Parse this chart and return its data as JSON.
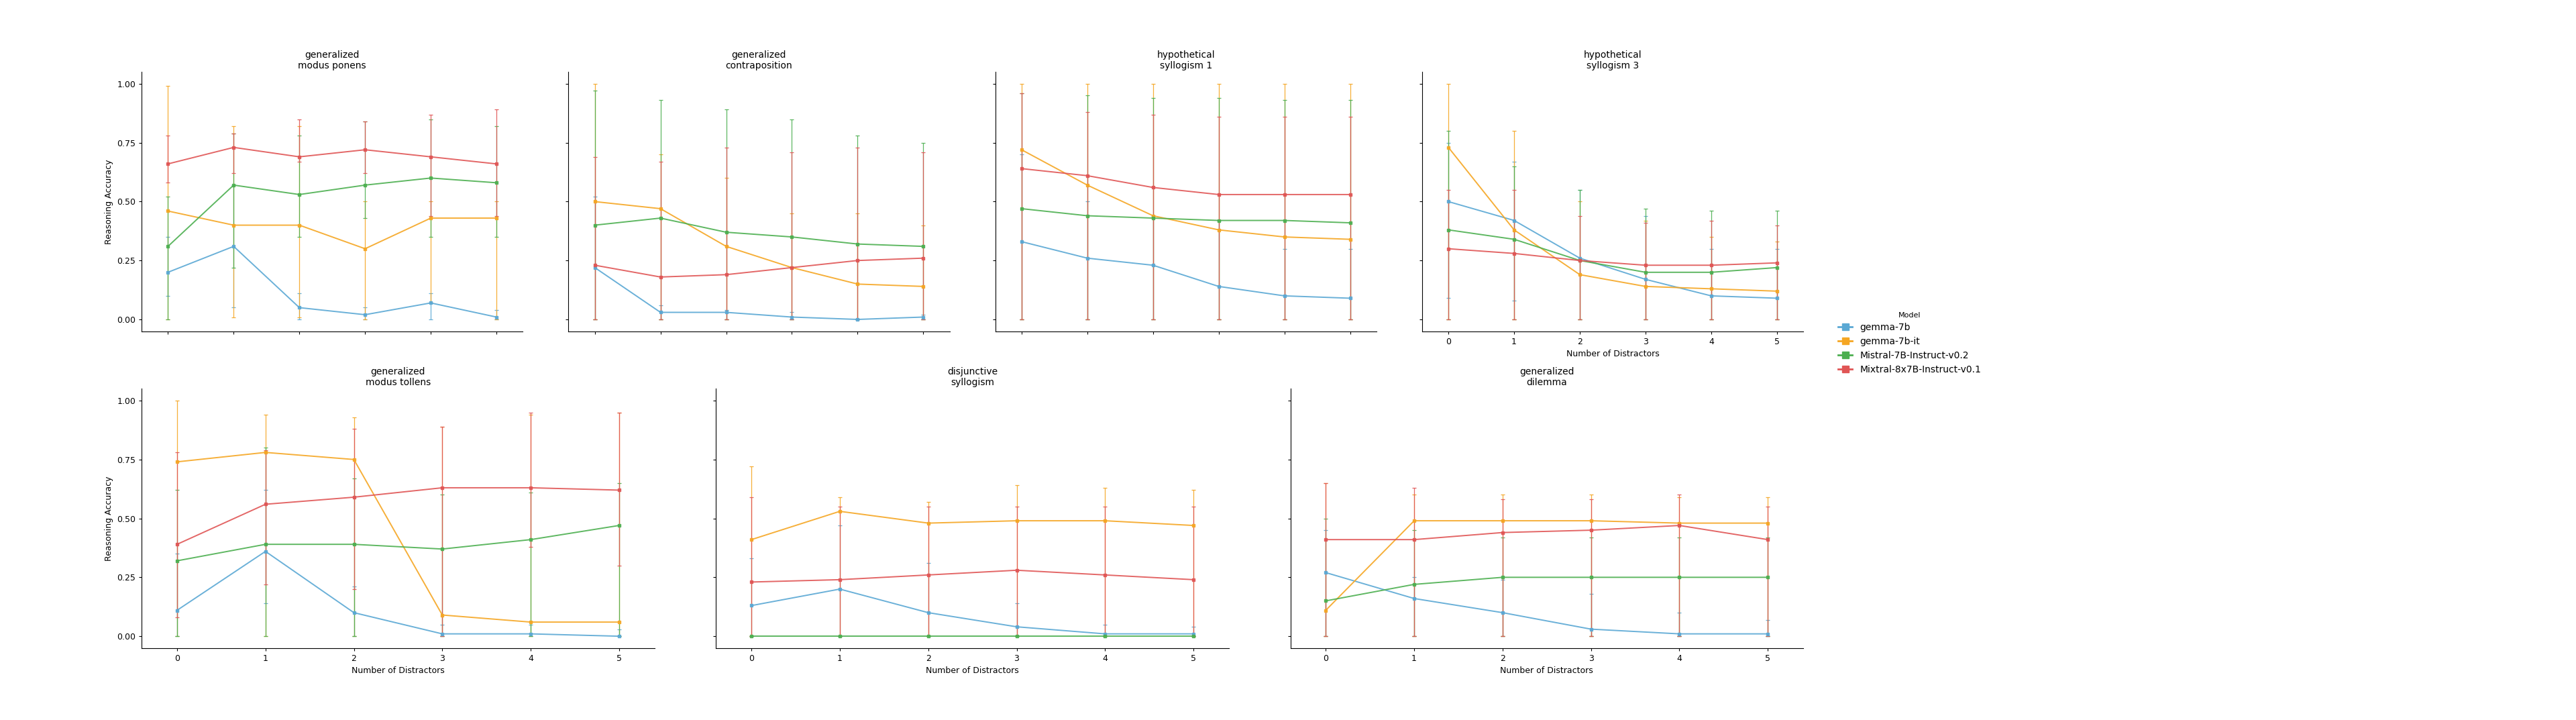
{
  "models": [
    "gemma-7b",
    "gemma-7b-it",
    "Mistral-7B-Instruct-v0.2",
    "Mixtral-8x7B-Instruct-v0.1"
  ],
  "model_colors": [
    "#5aa8d4",
    "#f5a623",
    "#4caf50",
    "#e05555"
  ],
  "x": [
    0,
    1,
    2,
    3,
    4,
    5
  ],
  "subplots": [
    {
      "title": "generalized\nmodus ponens",
      "row": 0,
      "col": 0,
      "data": {
        "gemma-7b": {
          "mean": [
            0.2,
            0.31,
            0.05,
            0.02,
            0.07,
            0.01
          ],
          "lo": [
            0.1,
            0.05,
            0.0,
            0.0,
            0.0,
            0.0
          ],
          "hi": [
            0.35,
            0.57,
            0.11,
            0.05,
            0.11,
            0.04
          ]
        },
        "gemma-7b-it": {
          "mean": [
            0.46,
            0.4,
            0.4,
            0.3,
            0.43,
            0.43
          ],
          "lo": [
            0.0,
            0.01,
            0.01,
            0.0,
            0.07,
            0.0
          ],
          "hi": [
            0.99,
            0.82,
            0.82,
            0.5,
            0.5,
            0.5
          ]
        },
        "Mistral-7B-Instruct-v0.2": {
          "mean": [
            0.31,
            0.57,
            0.53,
            0.57,
            0.6,
            0.58
          ],
          "lo": [
            0.0,
            0.22,
            0.35,
            0.43,
            0.35,
            0.35
          ],
          "hi": [
            0.52,
            0.79,
            0.78,
            0.84,
            0.85,
            0.82
          ]
        },
        "Mixtral-8x7B-Instruct-v0.1": {
          "mean": [
            0.66,
            0.73,
            0.69,
            0.72,
            0.69,
            0.66
          ],
          "lo": [
            0.58,
            0.62,
            0.67,
            0.62,
            0.44,
            0.44
          ],
          "hi": [
            0.78,
            0.79,
            0.85,
            0.84,
            0.87,
            0.89
          ]
        }
      }
    },
    {
      "title": "generalized\ncontraposition",
      "row": 0,
      "col": 1,
      "data": {
        "gemma-7b": {
          "mean": [
            0.22,
            0.03,
            0.03,
            0.01,
            0.0,
            0.01
          ],
          "lo": [
            0.0,
            0.0,
            0.0,
            0.0,
            0.0,
            0.0
          ],
          "hi": [
            0.52,
            0.06,
            0.04,
            0.03,
            0.0,
            0.02
          ]
        },
        "gemma-7b-it": {
          "mean": [
            0.5,
            0.47,
            0.31,
            0.22,
            0.15,
            0.14
          ],
          "lo": [
            0.0,
            0.0,
            0.0,
            0.0,
            0.0,
            0.0
          ],
          "hi": [
            1.0,
            0.7,
            0.6,
            0.45,
            0.45,
            0.4
          ]
        },
        "Mistral-7B-Instruct-v0.2": {
          "mean": [
            0.4,
            0.43,
            0.37,
            0.35,
            0.32,
            0.31
          ],
          "lo": [
            0.0,
            0.0,
            0.0,
            0.0,
            0.0,
            0.0
          ],
          "hi": [
            0.97,
            0.93,
            0.89,
            0.85,
            0.78,
            0.75
          ]
        },
        "Mixtral-8x7B-Instruct-v0.1": {
          "mean": [
            0.23,
            0.18,
            0.19,
            0.22,
            0.25,
            0.26
          ],
          "lo": [
            0.0,
            0.0,
            0.0,
            0.0,
            0.0,
            0.0
          ],
          "hi": [
            0.69,
            0.67,
            0.73,
            0.71,
            0.73,
            0.71
          ]
        }
      }
    },
    {
      "title": "hypothetical\nsyllogism 1",
      "row": 0,
      "col": 2,
      "data": {
        "gemma-7b": {
          "mean": [
            0.33,
            0.26,
            0.23,
            0.14,
            0.1,
            0.09
          ],
          "lo": [
            0.0,
            0.0,
            0.0,
            0.0,
            0.0,
            0.0
          ],
          "hi": [
            0.7,
            0.5,
            0.44,
            0.42,
            0.3,
            0.3
          ]
        },
        "gemma-7b-it": {
          "mean": [
            0.72,
            0.57,
            0.44,
            0.38,
            0.35,
            0.34
          ],
          "lo": [
            0.0,
            0.0,
            0.0,
            0.0,
            0.0,
            0.0
          ],
          "hi": [
            1.0,
            1.0,
            1.0,
            1.0,
            1.0,
            1.0
          ]
        },
        "Mistral-7B-Instruct-v0.2": {
          "mean": [
            0.47,
            0.44,
            0.43,
            0.42,
            0.42,
            0.41
          ],
          "lo": [
            0.0,
            0.0,
            0.0,
            0.0,
            0.0,
            0.0
          ],
          "hi": [
            0.96,
            0.95,
            0.94,
            0.94,
            0.93,
            0.93
          ]
        },
        "Mixtral-8x7B-Instruct-v0.1": {
          "mean": [
            0.64,
            0.61,
            0.56,
            0.53,
            0.53,
            0.53
          ],
          "lo": [
            0.0,
            0.0,
            0.0,
            0.0,
            0.0,
            0.0
          ],
          "hi": [
            0.96,
            0.88,
            0.87,
            0.86,
            0.86,
            0.86
          ]
        }
      }
    },
    {
      "title": "hypothetical\nsyllogism 3",
      "row": 0,
      "col": 3,
      "data": {
        "gemma-7b": {
          "mean": [
            0.5,
            0.42,
            0.26,
            0.17,
            0.1,
            0.09
          ],
          "lo": [
            0.09,
            0.08,
            0.0,
            0.0,
            0.0,
            0.0
          ],
          "hi": [
            0.75,
            0.67,
            0.55,
            0.44,
            0.3,
            0.3
          ]
        },
        "gemma-7b-it": {
          "mean": [
            0.73,
            0.38,
            0.19,
            0.14,
            0.13,
            0.12
          ],
          "lo": [
            0.0,
            0.0,
            0.0,
            0.0,
            0.0,
            0.0
          ],
          "hi": [
            1.0,
            0.8,
            0.5,
            0.42,
            0.35,
            0.33
          ]
        },
        "Mistral-7B-Instruct-v0.2": {
          "mean": [
            0.38,
            0.34,
            0.25,
            0.2,
            0.2,
            0.22
          ],
          "lo": [
            0.0,
            0.0,
            0.0,
            0.0,
            0.0,
            0.0
          ],
          "hi": [
            0.8,
            0.65,
            0.55,
            0.47,
            0.46,
            0.46
          ]
        },
        "Mixtral-8x7B-Instruct-v0.1": {
          "mean": [
            0.3,
            0.28,
            0.25,
            0.23,
            0.23,
            0.24
          ],
          "lo": [
            0.0,
            0.0,
            0.0,
            0.0,
            0.0,
            0.0
          ],
          "hi": [
            0.55,
            0.55,
            0.44,
            0.41,
            0.42,
            0.4
          ]
        }
      }
    },
    {
      "title": "generalized\nmodus tollens",
      "row": 1,
      "col": 0,
      "data": {
        "gemma-7b": {
          "mean": [
            0.11,
            0.36,
            0.1,
            0.01,
            0.01,
            0.0
          ],
          "lo": [
            0.0,
            0.14,
            0.0,
            0.0,
            0.0,
            0.0
          ],
          "hi": [
            0.35,
            0.62,
            0.21,
            0.05,
            0.05,
            0.03
          ]
        },
        "gemma-7b-it": {
          "mean": [
            0.74,
            0.78,
            0.75,
            0.09,
            0.06,
            0.06
          ],
          "lo": [
            0.0,
            0.0,
            0.0,
            0.0,
            0.0,
            0.0
          ],
          "hi": [
            1.0,
            0.94,
            0.93,
            0.89,
            0.94,
            0.95
          ]
        },
        "Mistral-7B-Instruct-v0.2": {
          "mean": [
            0.32,
            0.39,
            0.39,
            0.37,
            0.41,
            0.47
          ],
          "lo": [
            0.0,
            0.0,
            0.0,
            0.0,
            0.0,
            0.0
          ],
          "hi": [
            0.62,
            0.8,
            0.67,
            0.6,
            0.61,
            0.65
          ]
        },
        "Mixtral-8x7B-Instruct-v0.1": {
          "mean": [
            0.39,
            0.56,
            0.59,
            0.63,
            0.63,
            0.62
          ],
          "lo": [
            0.08,
            0.22,
            0.2,
            0.0,
            0.38,
            0.3
          ],
          "hi": [
            0.78,
            0.79,
            0.88,
            0.89,
            0.95,
            0.95
          ]
        }
      }
    },
    {
      "title": "disjunctive\nsyllogism",
      "row": 1,
      "col": 1,
      "data": {
        "gemma-7b": {
          "mean": [
            0.13,
            0.2,
            0.1,
            0.04,
            0.01,
            0.01
          ],
          "lo": [
            0.0,
            0.0,
            0.0,
            0.0,
            0.0,
            0.0
          ],
          "hi": [
            0.33,
            0.47,
            0.31,
            0.14,
            0.05,
            0.04
          ]
        },
        "gemma-7b-it": {
          "mean": [
            0.41,
            0.53,
            0.48,
            0.49,
            0.49,
            0.47
          ],
          "lo": [
            0.0,
            0.0,
            0.0,
            0.0,
            0.0,
            0.0
          ],
          "hi": [
            0.72,
            0.59,
            0.57,
            0.64,
            0.63,
            0.62
          ]
        },
        "Mistral-7B-Instruct-v0.2": {
          "mean": [
            0.0,
            0.0,
            0.0,
            0.0,
            0.0,
            0.0
          ],
          "lo": [
            0.0,
            0.0,
            0.0,
            0.0,
            0.0,
            0.0
          ],
          "hi": [
            0.0,
            0.0,
            0.0,
            0.0,
            0.0,
            0.0
          ]
        },
        "Mixtral-8x7B-Instruct-v0.1": {
          "mean": [
            0.23,
            0.24,
            0.26,
            0.28,
            0.26,
            0.24
          ],
          "lo": [
            0.0,
            0.0,
            0.0,
            0.0,
            0.0,
            0.0
          ],
          "hi": [
            0.59,
            0.55,
            0.55,
            0.55,
            0.55,
            0.55
          ]
        }
      }
    },
    {
      "title": "generalized\ndilemma",
      "row": 1,
      "col": 2,
      "data": {
        "gemma-7b": {
          "mean": [
            0.27,
            0.16,
            0.1,
            0.03,
            0.01,
            0.01
          ],
          "lo": [
            0.0,
            0.0,
            0.0,
            0.0,
            0.0,
            0.0
          ],
          "hi": [
            0.45,
            0.25,
            0.24,
            0.18,
            0.1,
            0.07
          ]
        },
        "gemma-7b-it": {
          "mean": [
            0.11,
            0.49,
            0.49,
            0.49,
            0.48,
            0.48
          ],
          "lo": [
            0.0,
            0.0,
            0.0,
            0.0,
            0.0,
            0.0
          ],
          "hi": [
            0.65,
            0.6,
            0.6,
            0.6,
            0.59,
            0.59
          ]
        },
        "Mistral-7B-Instruct-v0.2": {
          "mean": [
            0.15,
            0.22,
            0.25,
            0.25,
            0.25,
            0.25
          ],
          "lo": [
            0.0,
            0.0,
            0.0,
            0.0,
            0.0,
            0.0
          ],
          "hi": [
            0.5,
            0.45,
            0.42,
            0.42,
            0.42,
            0.42
          ]
        },
        "Mixtral-8x7B-Instruct-v0.1": {
          "mean": [
            0.41,
            0.41,
            0.44,
            0.45,
            0.47,
            0.41
          ],
          "lo": [
            0.0,
            0.0,
            0.0,
            0.0,
            0.0,
            0.0
          ],
          "hi": [
            0.65,
            0.63,
            0.58,
            0.58,
            0.6,
            0.55
          ]
        }
      }
    }
  ],
  "ylabel": "Reasoning Accuracy",
  "xlabel": "Number of Distractors",
  "ylim": [
    -0.05,
    1.05
  ],
  "yticks": [
    0.0,
    0.25,
    0.5,
    0.75,
    1.0
  ],
  "yticklabels": [
    "0.00",
    "0.25",
    "0.50",
    "0.75",
    "1.00"
  ],
  "legend_labels": [
    "gemma-7b",
    "gemma-7b-it",
    "Mistral-7B-Instruct-v0.2",
    "Mixtral-8x7B-Instruct-v0.1"
  ],
  "legend_colors": [
    "#5aa8d4",
    "#f5a623",
    "#4caf50",
    "#e05555"
  ],
  "legend_title": "Model",
  "background_color": "#ffffff"
}
